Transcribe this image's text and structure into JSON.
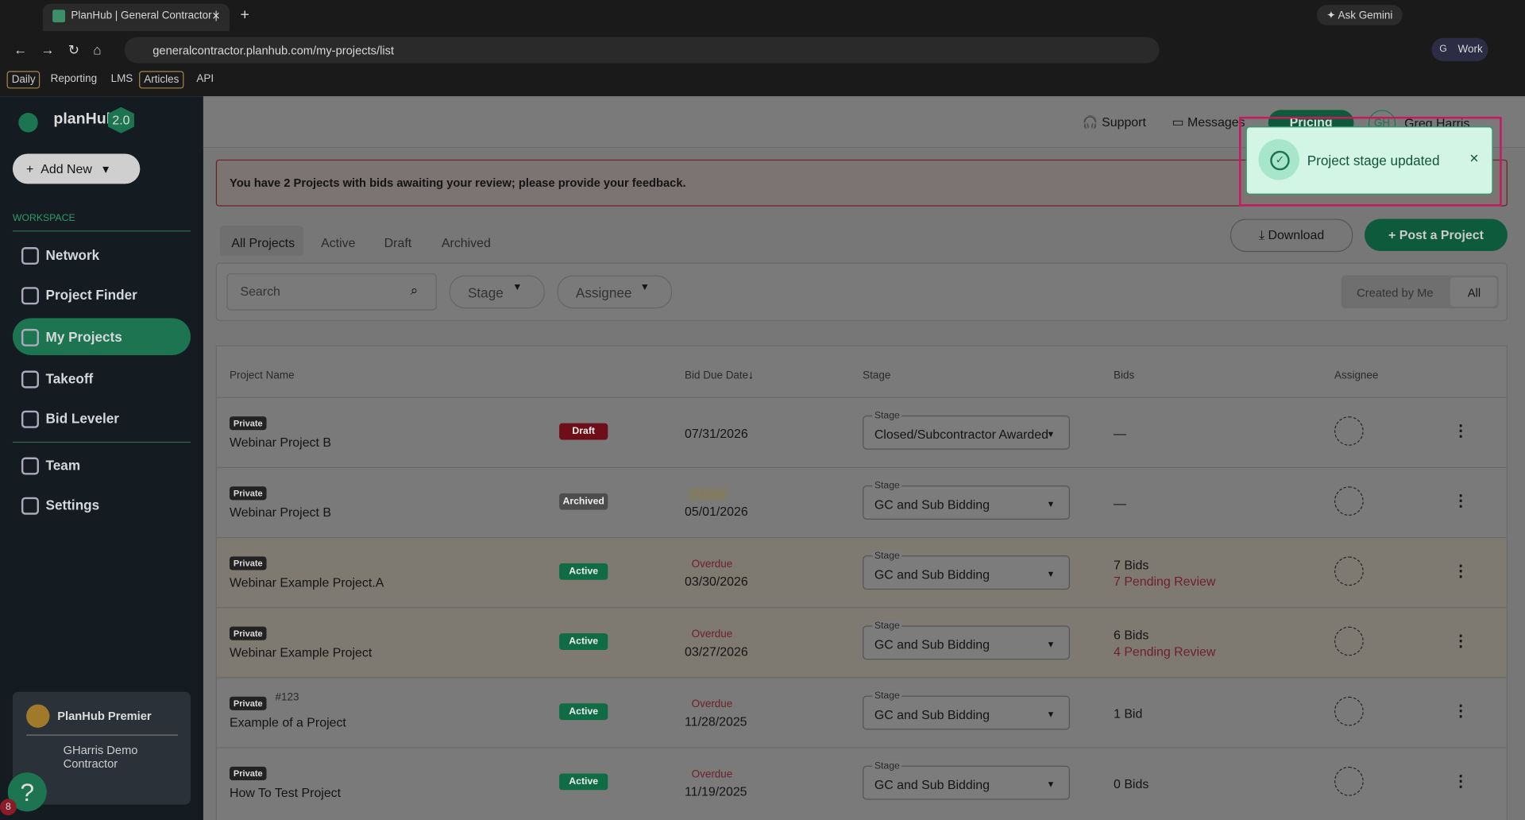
{
  "browser": {
    "tab_title": "PlanHub | General Contractor |",
    "url": "generalcontractor.planhub.com/my-projects/list",
    "ask_gemini": "Ask Gemini",
    "profile_initial": "G",
    "profile": "Work",
    "bookmarks": [
      "Daily",
      "Reporting",
      "LMS",
      "Articles",
      "API"
    ]
  },
  "sidebar": {
    "logo": "planHub",
    "version": "2.0",
    "add_new": "Add New",
    "section": "WORKSPACE",
    "nav": [
      "Network",
      "Project Finder",
      "My Projects",
      "Takeoff",
      "Bid Leveler",
      "Team",
      "Settings"
    ],
    "premier": "PlanHub Premier",
    "company": "GHarris Demo Contractor",
    "help": "?",
    "badge": "8"
  },
  "header": {
    "support": "Support",
    "messages": "Messages",
    "pricing": "Pricing",
    "initials": "GH",
    "user": "Greg Harris"
  },
  "toast": {
    "message": "Project stage updated",
    "close": "×"
  },
  "banner": "You have 2 Projects with bids awaiting your review; please provide your feedback.",
  "tabs": [
    "All Projects",
    "Active",
    "Draft",
    "Archived"
  ],
  "buttons": {
    "download": "Download",
    "post": "+ Post a Project"
  },
  "filters": {
    "search": "Search",
    "stage": "Stage",
    "assignee": "Assignee",
    "toggle": [
      "Created by Me",
      "All"
    ]
  },
  "table": {
    "columns": [
      "Project Name",
      "Bid Due Date",
      "Stage",
      "Bids",
      "Assignee"
    ],
    "rows": [
      {
        "visibility": "Private",
        "name": "Webinar Project B",
        "status": "Draft",
        "due_date": "07/31/2026",
        "stage_label": "Stage",
        "stage": "Closed/Subcontractor Awarded",
        "bids": "—"
      },
      {
        "visibility": "Private",
        "name": "Webinar Project B",
        "status": "Archived",
        "due_note": "3 Days",
        "due_date": "05/01/2026",
        "stage_label": "Stage",
        "stage": "GC and Sub Bidding",
        "bids": "—"
      },
      {
        "visibility": "Private",
        "name": "Webinar Example Project.A",
        "status": "Active",
        "due_note": "Overdue",
        "due_date": "03/30/2026",
        "stage_label": "Stage",
        "stage": "GC and Sub Bidding",
        "bids": "7 Bids",
        "pending": "7 Pending Review"
      },
      {
        "visibility": "Private",
        "name": "Webinar Example Project",
        "status": "Active",
        "due_note": "Overdue",
        "due_date": "03/27/2026",
        "stage_label": "Stage",
        "stage": "GC and Sub Bidding",
        "bids": "6 Bids",
        "pending": "4 Pending Review"
      },
      {
        "visibility": "Private",
        "number": "#123",
        "name": "Example of a Project",
        "status": "Active",
        "due_note": "Overdue",
        "due_date": "11/28/2025",
        "stage_label": "Stage",
        "stage": "GC and Sub Bidding",
        "bids": "1 Bid"
      },
      {
        "visibility": "Private",
        "name": "How To Test Project",
        "status": "Active",
        "due_note": "Overdue",
        "due_date": "11/19/2025",
        "stage_label": "Stage",
        "stage": "GC and Sub Bidding",
        "bids": "0 Bids"
      }
    ]
  }
}
